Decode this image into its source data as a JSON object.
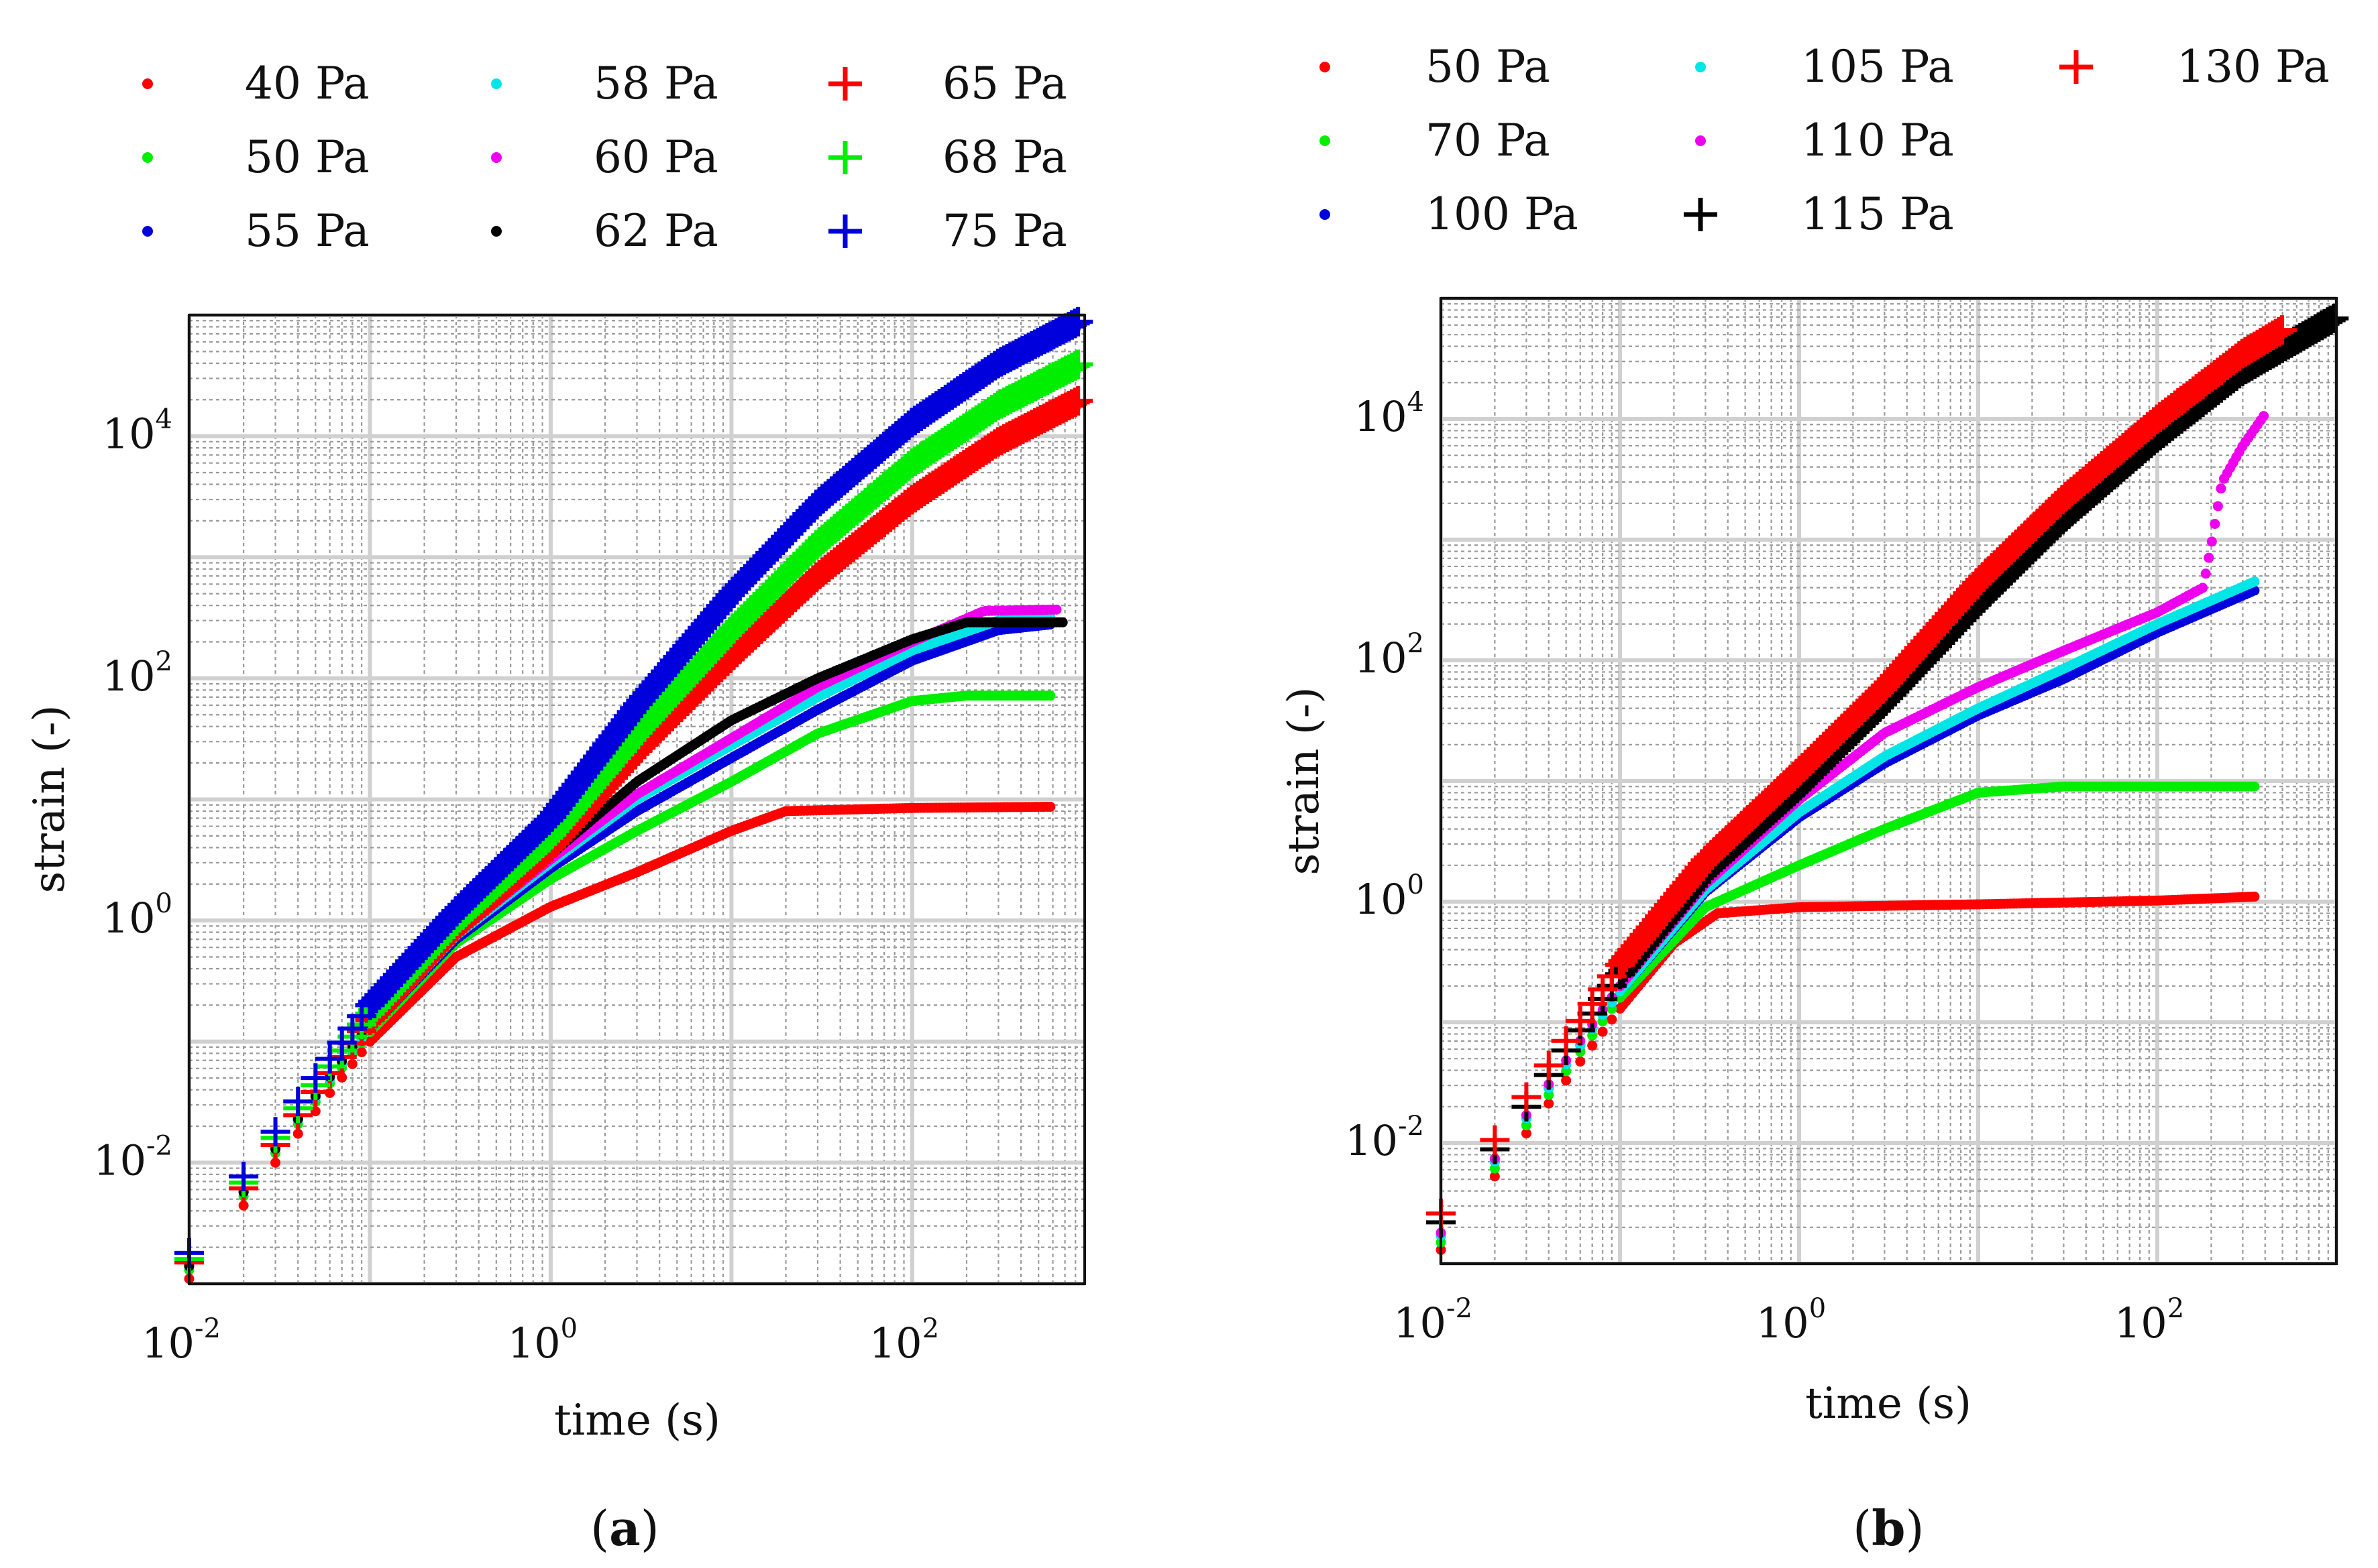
{
  "chart_data": [
    {
      "type": "scatter",
      "panel_label": {
        "open": "(",
        "letter": "a",
        "close": ")"
      },
      "title": "",
      "xlabel": "time (s)",
      "ylabel": "strain (-)",
      "xscale": "log",
      "yscale": "log",
      "xlim": [
        0.01,
        900
      ],
      "ylim": [
        0.001,
        100000
      ],
      "grid": true,
      "legend_placement": "top",
      "x_ticks": [
        {
          "value": 0.01,
          "base": "10",
          "exp": "-2"
        },
        {
          "value": 1,
          "base": "10",
          "exp": "0"
        },
        {
          "value": 100,
          "base": "10",
          "exp": "2"
        }
      ],
      "y_ticks": [
        {
          "value": 0.01,
          "base": "10",
          "exp": "-2"
        },
        {
          "value": 1,
          "base": "10",
          "exp": "0"
        },
        {
          "value": 100,
          "base": "10",
          "exp": "2"
        },
        {
          "value": 10000,
          "base": "10",
          "exp": "4"
        }
      ],
      "series": [
        {
          "name": "40 Pa",
          "color": "#ff0000",
          "marker": "dot",
          "tmax": 600,
          "points": [
            [
              0.01,
              0.0011
            ],
            [
              0.03,
              0.01
            ],
            [
              0.1,
              0.1
            ],
            [
              0.3,
              0.5
            ],
            [
              1,
              1.3
            ],
            [
              3,
              2.5
            ],
            [
              10,
              5.5
            ],
            [
              20,
              8
            ],
            [
              100,
              8.5
            ],
            [
              600,
              8.7
            ]
          ]
        },
        {
          "name": "50 Pa",
          "color": "#00ee00",
          "marker": "dot",
          "tmax": 600,
          "points": [
            [
              0.01,
              0.0013
            ],
            [
              0.03,
              0.012
            ],
            [
              0.1,
              0.12
            ],
            [
              0.3,
              0.65
            ],
            [
              1,
              2.2
            ],
            [
              3,
              5.5
            ],
            [
              10,
              14
            ],
            [
              30,
              35
            ],
            [
              100,
              65
            ],
            [
              200,
              72
            ],
            [
              600,
              72
            ]
          ]
        },
        {
          "name": "55 Pa",
          "color": "#0000dd",
          "marker": "dot",
          "tmax": 600,
          "points": [
            [
              0.01,
              0.0014
            ],
            [
              0.03,
              0.013
            ],
            [
              0.1,
              0.13
            ],
            [
              0.3,
              0.7
            ],
            [
              1,
              2.7
            ],
            [
              3,
              8
            ],
            [
              10,
              22
            ],
            [
              30,
              55
            ],
            [
              100,
              140
            ],
            [
              300,
              250
            ],
            [
              600,
              280
            ]
          ]
        },
        {
          "name": "58 Pa",
          "color": "#00e5e5",
          "marker": "dot",
          "tmax": 600,
          "points": [
            [
              0.01,
              0.0014
            ],
            [
              0.03,
              0.013
            ],
            [
              0.1,
              0.13
            ],
            [
              0.3,
              0.75
            ],
            [
              1,
              3
            ],
            [
              3,
              10
            ],
            [
              10,
              28
            ],
            [
              30,
              70
            ],
            [
              100,
              170
            ],
            [
              300,
              300
            ],
            [
              600,
              320
            ]
          ]
        },
        {
          "name": "60 Pa",
          "color": "#ee00ee",
          "marker": "dot",
          "tmax": 650,
          "points": [
            [
              0.01,
              0.0014
            ],
            [
              0.03,
              0.013
            ],
            [
              0.1,
              0.14
            ],
            [
              0.3,
              0.78
            ],
            [
              1,
              3.2
            ],
            [
              3,
              11
            ],
            [
              10,
              32
            ],
            [
              30,
              85
            ],
            [
              100,
              200
            ],
            [
              250,
              360
            ],
            [
              650,
              370
            ]
          ]
        },
        {
          "name": "62 Pa",
          "color": "#000000",
          "marker": "dot",
          "tmax": 700,
          "points": [
            [
              0.01,
              0.0014
            ],
            [
              0.03,
              0.013
            ],
            [
              0.1,
              0.14
            ],
            [
              0.3,
              0.8
            ],
            [
              1,
              3.5
            ],
            [
              3,
              14
            ],
            [
              10,
              45
            ],
            [
              30,
              100
            ],
            [
              100,
              210
            ],
            [
              200,
              290
            ],
            [
              700,
              290
            ]
          ]
        },
        {
          "name": "65 Pa",
          "color": "#ff0000",
          "marker": "plus",
          "tmax": 850,
          "points": [
            [
              0.01,
              0.0015
            ],
            [
              0.03,
              0.014
            ],
            [
              0.1,
              0.15
            ],
            [
              0.3,
              0.9
            ],
            [
              1,
              4
            ],
            [
              3,
              25
            ],
            [
              10,
              150
            ],
            [
              30,
              700
            ],
            [
              100,
              3000
            ],
            [
              300,
              9000
            ],
            [
              850,
              20000
            ]
          ]
        },
        {
          "name": "68 Pa",
          "color": "#00ee00",
          "marker": "plus",
          "tmax": 850,
          "points": [
            [
              0.01,
              0.0016
            ],
            [
              0.03,
              0.016
            ],
            [
              0.1,
              0.17
            ],
            [
              0.3,
              1
            ],
            [
              1,
              5
            ],
            [
              3,
              35
            ],
            [
              10,
              250
            ],
            [
              30,
              1300
            ],
            [
              100,
              6000
            ],
            [
              300,
              18000
            ],
            [
              850,
              40000
            ]
          ]
        },
        {
          "name": "75 Pa",
          "color": "#0000dd",
          "marker": "plus",
          "tmax": 850,
          "points": [
            [
              0.01,
              0.0018
            ],
            [
              0.03,
              0.018
            ],
            [
              0.1,
              0.2
            ],
            [
              0.3,
              1.2
            ],
            [
              1,
              7
            ],
            [
              3,
              60
            ],
            [
              10,
              500
            ],
            [
              30,
              2800
            ],
            [
              100,
              13000
            ],
            [
              300,
              40000
            ],
            [
              850,
              90000
            ]
          ]
        }
      ],
      "legend": [
        {
          "label": "40 Pa",
          "color": "#ff0000",
          "marker": "dot"
        },
        {
          "label": "50 Pa",
          "color": "#00ee00",
          "marker": "dot"
        },
        {
          "label": "55 Pa",
          "color": "#0000dd",
          "marker": "dot"
        },
        {
          "label": "58 Pa",
          "color": "#00e5e5",
          "marker": "dot"
        },
        {
          "label": "60 Pa",
          "color": "#ee00ee",
          "marker": "dot"
        },
        {
          "label": "62 Pa",
          "color": "#000000",
          "marker": "dot"
        },
        {
          "label": "65 Pa",
          "color": "#ff0000",
          "marker": "plus"
        },
        {
          "label": "68 Pa",
          "color": "#00ee00",
          "marker": "plus"
        },
        {
          "label": "75 Pa",
          "color": "#0000dd",
          "marker": "plus"
        }
      ]
    },
    {
      "type": "scatter",
      "panel_label": {
        "open": "(",
        "letter": "b",
        "close": ")"
      },
      "title": "",
      "xlabel": "time (s)",
      "ylabel": "strain (-)",
      "xscale": "log",
      "yscale": "log",
      "xlim": [
        0.01,
        1000
      ],
      "ylim": [
        0.001,
        100000
      ],
      "grid": true,
      "legend_placement": "top",
      "x_ticks": [
        {
          "value": 0.01,
          "base": "10",
          "exp": "-2"
        },
        {
          "value": 1,
          "base": "10",
          "exp": "0"
        },
        {
          "value": 100,
          "base": "10",
          "exp": "2"
        }
      ],
      "y_ticks": [
        {
          "value": 0.01,
          "base": "10",
          "exp": "-2"
        },
        {
          "value": 1,
          "base": "10",
          "exp": "0"
        },
        {
          "value": 100,
          "base": "10",
          "exp": "2"
        },
        {
          "value": 10000,
          "base": "10",
          "exp": "4"
        }
      ],
      "series": [
        {
          "name": "50 Pa",
          "color": "#ff0000",
          "marker": "dot",
          "tmax": 350,
          "points": [
            [
              0.01,
              0.0013
            ],
            [
              0.03,
              0.012
            ],
            [
              0.1,
              0.13
            ],
            [
              0.2,
              0.45
            ],
            [
              0.35,
              0.8
            ],
            [
              1,
              0.9
            ],
            [
              10,
              0.95
            ],
            [
              100,
              1.02
            ],
            [
              350,
              1.1
            ]
          ]
        },
        {
          "name": "70 Pa",
          "color": "#00ee00",
          "marker": "dot",
          "tmax": 350,
          "points": [
            [
              0.01,
              0.0015
            ],
            [
              0.03,
              0.014
            ],
            [
              0.1,
              0.16
            ],
            [
              0.3,
              0.9
            ],
            [
              1,
              2
            ],
            [
              3,
              4
            ],
            [
              10,
              8
            ],
            [
              30,
              9
            ],
            [
              350,
              9
            ]
          ]
        },
        {
          "name": "100 Pa",
          "color": "#0000dd",
          "marker": "dot",
          "tmax": 350,
          "points": [
            [
              0.01,
              0.0017
            ],
            [
              0.03,
              0.016
            ],
            [
              0.1,
              0.18
            ],
            [
              0.3,
              1.2
            ],
            [
              1,
              5
            ],
            [
              3,
              14
            ],
            [
              10,
              35
            ],
            [
              30,
              70
            ],
            [
              100,
              170
            ],
            [
              350,
              380
            ]
          ]
        },
        {
          "name": "105 Pa",
          "color": "#00e5e5",
          "marker": "dot",
          "tmax": 350,
          "points": [
            [
              0.01,
              0.0017
            ],
            [
              0.03,
              0.016
            ],
            [
              0.1,
              0.18
            ],
            [
              0.3,
              1.25
            ],
            [
              1,
              5.5
            ],
            [
              3,
              16
            ],
            [
              10,
              40
            ],
            [
              30,
              85
            ],
            [
              100,
              200
            ],
            [
              350,
              450
            ]
          ]
        },
        {
          "name": "110 Pa",
          "color": "#ee00ee",
          "marker": "dot",
          "tmax": 400,
          "points": [
            [
              0.01,
              0.0018
            ],
            [
              0.03,
              0.017
            ],
            [
              0.1,
              0.2
            ],
            [
              0.3,
              1.4
            ],
            [
              1,
              7
            ],
            [
              3,
              25
            ],
            [
              10,
              60
            ],
            [
              30,
              120
            ],
            [
              100,
              250
            ],
            [
              180,
              400
            ],
            [
              200,
              900
            ],
            [
              230,
              3000
            ],
            [
              300,
              6000
            ],
            [
              400,
              11000
            ]
          ]
        },
        {
          "name": "115 Pa",
          "color": "#000000",
          "marker": "plus",
          "tmax": 1000,
          "points": [
            [
              0.01,
              0.0022
            ],
            [
              0.03,
              0.02
            ],
            [
              0.1,
              0.25
            ],
            [
              0.3,
              1.8
            ],
            [
              1,
              9
            ],
            [
              3,
              45
            ],
            [
              10,
              300
            ],
            [
              30,
              1500
            ],
            [
              100,
              7000
            ],
            [
              300,
              25000
            ],
            [
              1000,
              70000
            ]
          ]
        },
        {
          "name": "130 Pa",
          "color": "#ff0000",
          "marker": "plus",
          "tmax": 500,
          "points": [
            [
              0.01,
              0.0026
            ],
            [
              0.03,
              0.024
            ],
            [
              0.1,
              0.3
            ],
            [
              0.3,
              2.2
            ],
            [
              1,
              12
            ],
            [
              3,
              60
            ],
            [
              10,
              450
            ],
            [
              30,
              2200
            ],
            [
              100,
              10000
            ],
            [
              300,
              35000
            ],
            [
              500,
              55000
            ]
          ]
        }
      ],
      "legend": [
        {
          "label": "50 Pa",
          "color": "#ff0000",
          "marker": "dot"
        },
        {
          "label": "70 Pa",
          "color": "#00ee00",
          "marker": "dot"
        },
        {
          "label": "100 Pa",
          "color": "#0000dd",
          "marker": "dot"
        },
        {
          "label": "105 Pa",
          "color": "#00e5e5",
          "marker": "dot"
        },
        {
          "label": "110 Pa",
          "color": "#ee00ee",
          "marker": "dot"
        },
        {
          "label": "115 Pa",
          "color": "#000000",
          "marker": "plus"
        },
        {
          "label": "130 Pa",
          "color": "#ff0000",
          "marker": "plus"
        }
      ]
    }
  ]
}
